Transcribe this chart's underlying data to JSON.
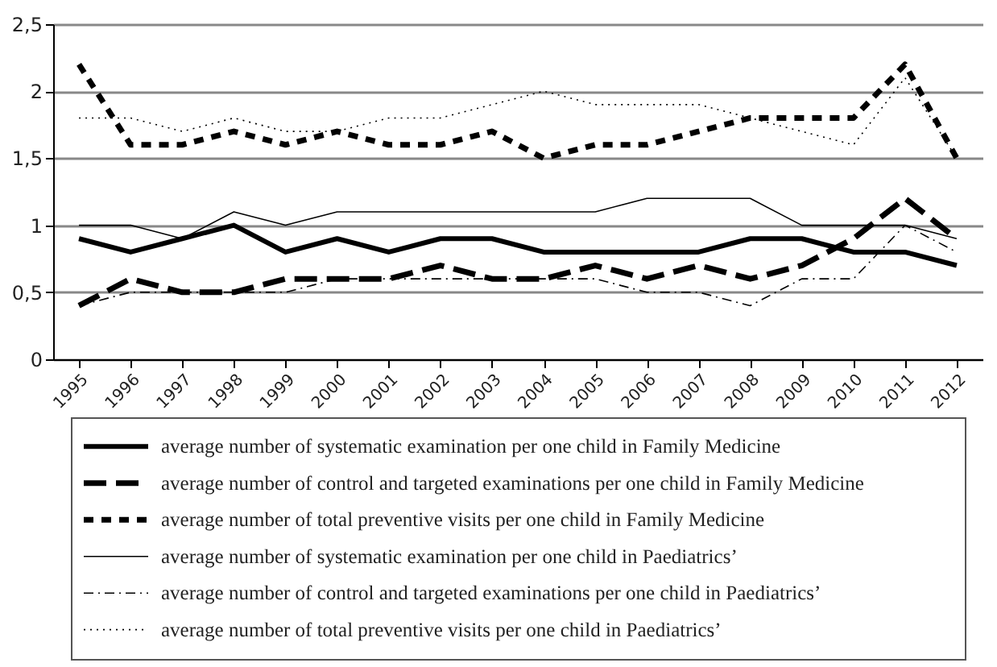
{
  "chart_data": {
    "type": "line",
    "categories": [
      "1995",
      "1996",
      "1997",
      "1998",
      "1999",
      "2000",
      "2001",
      "2002",
      "2003",
      "2004",
      "2005",
      "2006",
      "2007",
      "2008",
      "2009",
      "2010",
      "2011",
      "2012"
    ],
    "ylim": [
      0,
      2.5
    ],
    "yticks": [
      0,
      {
        "value": 0.5,
        "label": "0,5"
      },
      1,
      {
        "value": 1.5,
        "label": "1,5"
      },
      2,
      {
        "value": 2.5,
        "label": "2,5"
      }
    ],
    "grid": "y",
    "legend": "bottom",
    "marker": "none",
    "series": [
      {
        "name": "average number of systematic examination per one child in Family Medicine",
        "color": "#000000",
        "line_style": "solid",
        "values": [
          0.9,
          0.8,
          0.9,
          1.0,
          0.8,
          0.9,
          0.8,
          0.9,
          0.9,
          0.8,
          0.8,
          0.8,
          0.8,
          0.9,
          0.9,
          0.8,
          0.8,
          0.7
        ]
      },
      {
        "name": "average number of control and targeted examinations per one child in Family Medicine",
        "color": "#000000",
        "line_style": "longdash",
        "values": [
          0.4,
          0.6,
          0.5,
          0.5,
          0.6,
          0.6,
          0.6,
          0.7,
          0.6,
          0.6,
          0.7,
          0.6,
          0.7,
          0.6,
          0.7,
          0.9,
          1.2,
          0.9
        ]
      },
      {
        "name": "average number of total preventive visits per one child in Family Medicine",
        "color": "#000000",
        "line_style": "dashed",
        "values": [
          2.2,
          1.6,
          1.6,
          1.7,
          1.6,
          1.7,
          1.6,
          1.6,
          1.7,
          1.5,
          1.6,
          1.6,
          1.7,
          1.8,
          1.8,
          1.8,
          2.2,
          1.5
        ]
      },
      {
        "name": "average number of systematic examination per one child in Paediatrics’",
        "color": "#000000",
        "line_style": "solid",
        "values": [
          1.0,
          1.0,
          0.9,
          1.1,
          1.0,
          1.1,
          1.1,
          1.1,
          1.1,
          1.1,
          1.1,
          1.2,
          1.2,
          1.2,
          1.0,
          1.0,
          1.0,
          0.9
        ]
      },
      {
        "name": "average number of control and targeted examinations per one child in Paediatrics’",
        "color": "#000000",
        "line_style": "dashdot",
        "values": [
          0.4,
          0.5,
          0.5,
          0.5,
          0.5,
          0.6,
          0.6,
          0.6,
          0.6,
          0.6,
          0.6,
          0.5,
          0.5,
          0.4,
          0.6,
          0.6,
          1.0,
          0.8
        ]
      },
      {
        "name": "average number of total preventive visits per one child in Paediatrics’",
        "color": "#000000",
        "line_style": "dotted",
        "values": [
          1.8,
          1.8,
          1.7,
          1.8,
          1.7,
          1.7,
          1.8,
          1.8,
          1.9,
          2.0,
          1.9,
          1.9,
          1.9,
          1.8,
          1.7,
          1.6,
          2.1,
          1.5
        ]
      }
    ]
  }
}
